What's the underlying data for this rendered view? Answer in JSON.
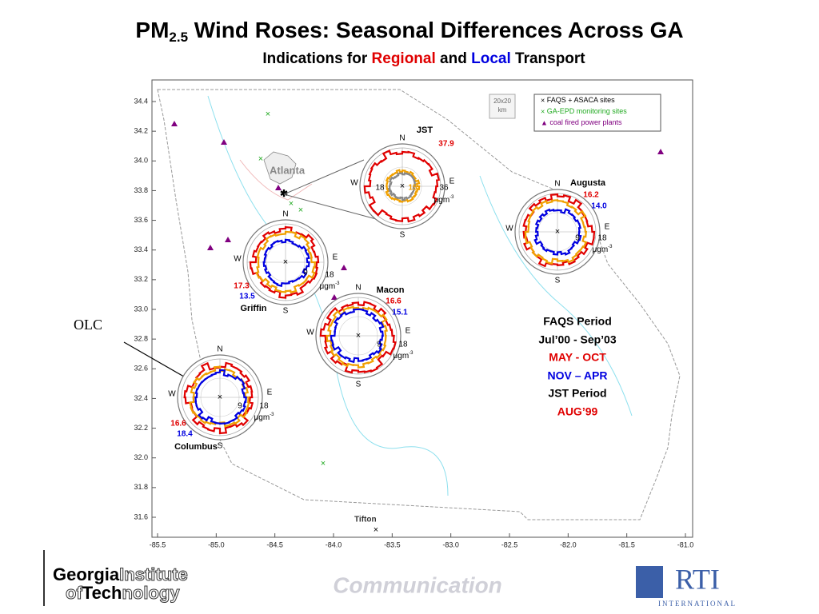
{
  "title": {
    "prefix": "PM",
    "subscript": "2.5",
    "rest": " Wind Roses: Seasonal Differences Across GA"
  },
  "subtitle": {
    "parts": [
      "Indications for ",
      "Regional",
      " and ",
      "Local",
      " Transport"
    ]
  },
  "map": {
    "yticks": [
      {
        "value": 34.4,
        "label": "34.4"
      },
      {
        "value": 34.2,
        "label": "34.2"
      },
      {
        "value": 34,
        "label": "34.0"
      },
      {
        "value": 33.8,
        "label": "33.8"
      },
      {
        "value": 33.6,
        "label": "33.6"
      },
      {
        "value": 33.4,
        "label": "33.4"
      },
      {
        "value": 33.2,
        "label": "33.2"
      },
      {
        "value": 33,
        "label": "33.0"
      },
      {
        "value": 32.8,
        "label": "32.8"
      },
      {
        "value": 32.6,
        "label": "32.6"
      },
      {
        "value": 32.4,
        "label": "32.4"
      },
      {
        "value": 32.2,
        "label": "32.2"
      },
      {
        "value": 32,
        "label": "32.0"
      },
      {
        "value": 31.8,
        "label": "31.8"
      },
      {
        "value": 31.6,
        "label": "31.6"
      }
    ],
    "xticks": [
      {
        "value": -85.5,
        "label": "-85.5"
      },
      {
        "value": -85,
        "label": "-85.0"
      },
      {
        "value": -84.5,
        "label": "-84.5"
      },
      {
        "value": -84,
        "label": "-84.0"
      },
      {
        "value": -83.5,
        "label": "-83.5"
      },
      {
        "value": -83,
        "label": "-83.0"
      },
      {
        "value": -82.5,
        "label": "-82.5"
      },
      {
        "value": -82,
        "label": "-82.0"
      },
      {
        "value": -81.5,
        "label": "-81.5"
      },
      {
        "value": -81,
        "label": "-81.0"
      }
    ],
    "legend": {
      "faqs": "FAQS",
      "asaca": "ASACA",
      "sites": "sites",
      "epd": "GA-EPD monitoring sites",
      "plants": "coal fired power plants"
    },
    "scale": {
      "size": "20x20",
      "unit": "km"
    },
    "places": [
      "Atlanta",
      "Tifton"
    ],
    "directions": [
      "N",
      "E",
      "S",
      "W"
    ],
    "roses": [
      {
        "name": "JST",
        "values": [
          "37.9",
          "15"
        ],
        "scale": [
          "18",
          "36"
        ],
        "unit": "μgm",
        "exponent": "-3"
      },
      {
        "name": "Augusta",
        "values": [
          "16.2",
          "14.0"
        ],
        "scale": [
          "9",
          "18"
        ],
        "unit": "μgm",
        "exponent": "-3"
      },
      {
        "name": "Griffin",
        "values": [
          "17.3",
          "13.5"
        ],
        "scale": [
          "9",
          "18"
        ],
        "unit": "μgm",
        "exponent": "-3"
      },
      {
        "name": "Macon",
        "values": [
          "16.6",
          "15.1"
        ],
        "scale": [
          "9",
          "18"
        ],
        "unit": "μgm",
        "exponent": "-3"
      },
      {
        "name": "Columbus",
        "values": [
          "16.6",
          "18.4"
        ],
        "scale": [
          "9",
          "18"
        ],
        "unit": "μgm",
        "exponent": "-3"
      }
    ]
  },
  "annotation": "OLC",
  "period": {
    "lines": [
      "FAQS Period",
      "Jul’00 - Sep’03",
      "MAY - OCT",
      "NOV – APR",
      "JST Period",
      "AUG’99"
    ]
  },
  "footer": {
    "gt": [
      "Georgia",
      "Institute",
      "of",
      "Tech",
      "nology"
    ],
    "center": "Communication",
    "rti": "RTI",
    "rti_sub": "INTERNATIONAL"
  }
}
